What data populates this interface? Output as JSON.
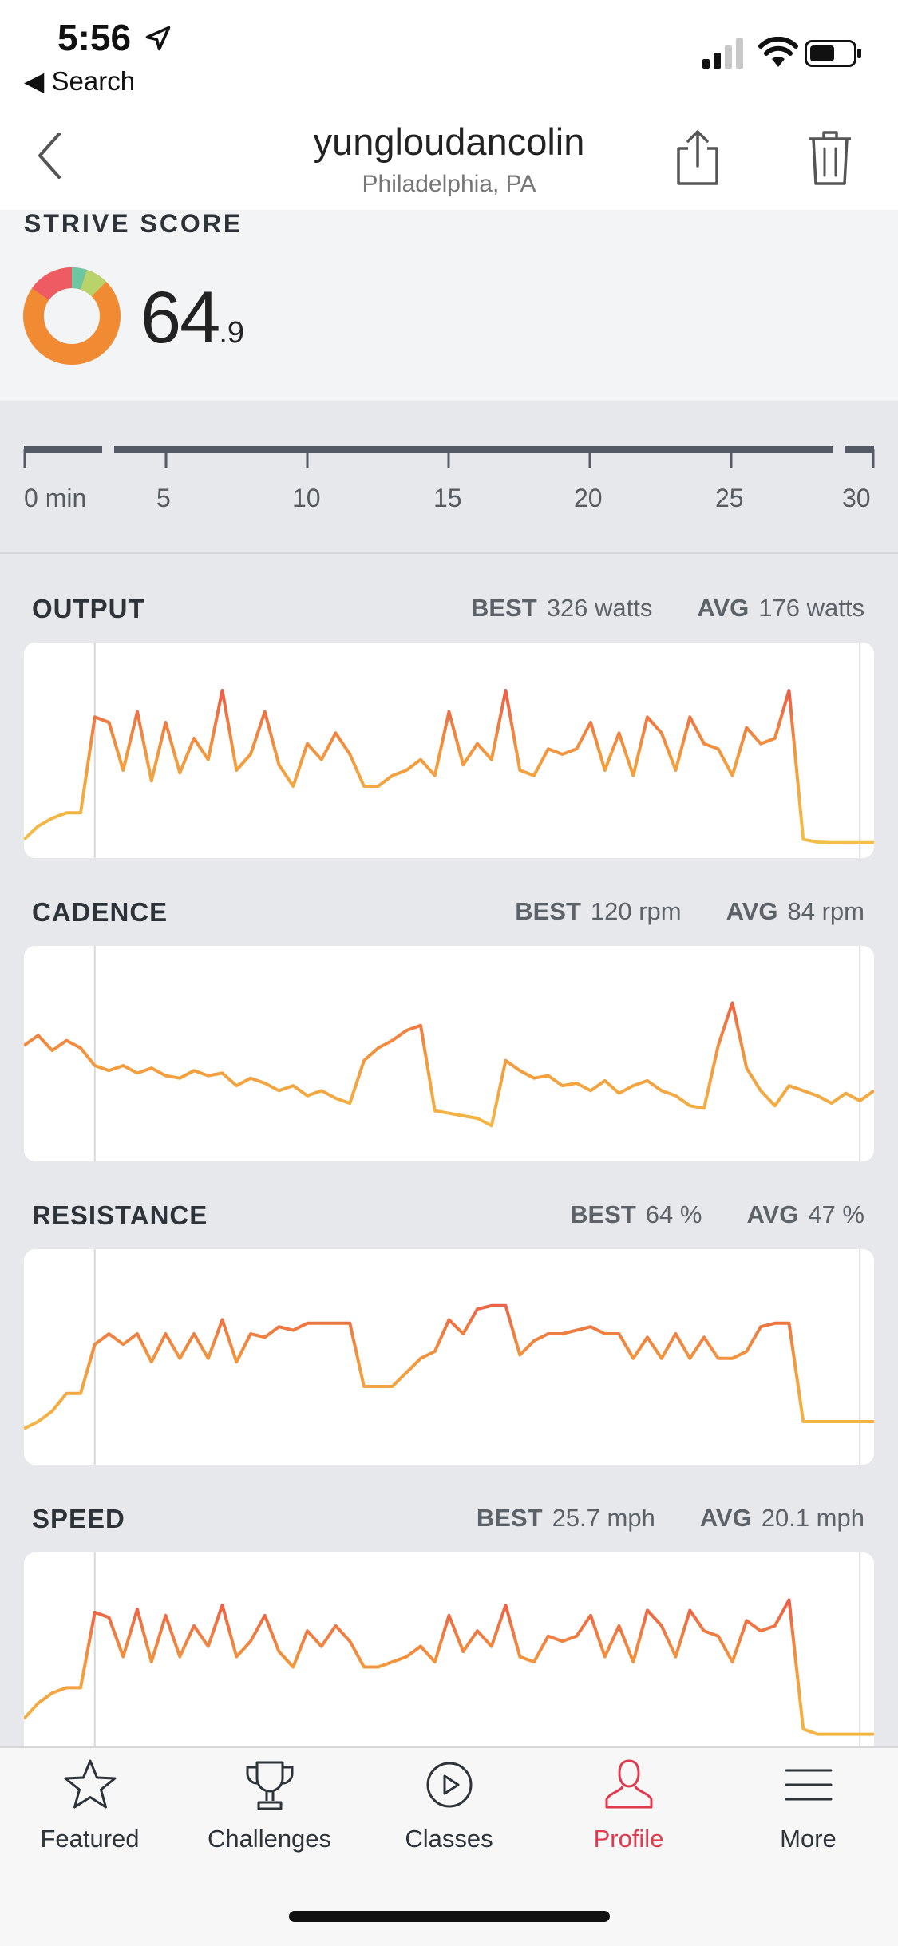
{
  "status_bar": {
    "time": "5:56",
    "back_label": "◀ Search"
  },
  "header": {
    "title": "yungloudancolin",
    "subtitle": "Philadelphia, PA"
  },
  "strive": {
    "label": "STRIVE SCORE",
    "value_main": "64",
    "value_decimal": ".9",
    "zone_colors": [
      "#ef5b63",
      "#6cc7a0",
      "#b7d36a",
      "#f08a33"
    ]
  },
  "timeline": {
    "ticks": [
      "0 min",
      "5",
      "10",
      "15",
      "20",
      "25",
      "30"
    ]
  },
  "metrics": [
    {
      "id": "output",
      "title": "OUTPUT",
      "best_label": "BEST",
      "best_value": "326 watts",
      "avg_label": "AVG",
      "avg_value": "176 watts",
      "chart_data": {
        "type": "line",
        "x": [
          0,
          0.5,
          1,
          1.5,
          2,
          2.5,
          3,
          3.5,
          4,
          4.5,
          5,
          5.5,
          6,
          6.5,
          7,
          7.5,
          8,
          8.5,
          9,
          9.5,
          10,
          10.5,
          11,
          11.5,
          12,
          12.5,
          13,
          13.5,
          14,
          14.5,
          15,
          15.5,
          16,
          16.5,
          17,
          17.5,
          18,
          18.5,
          19,
          19.5,
          20,
          20.5,
          21,
          21.5,
          22,
          22.5,
          23,
          23.5,
          24,
          24.5,
          25,
          25.5,
          26,
          26.5,
          27,
          27.5,
          28,
          28.5,
          29,
          29.5,
          30
        ],
        "y": [
          20,
          45,
          60,
          70,
          70,
          250,
          240,
          150,
          260,
          130,
          240,
          145,
          210,
          170,
          300,
          150,
          180,
          260,
          160,
          120,
          200,
          170,
          220,
          180,
          120,
          120,
          140,
          150,
          170,
          140,
          260,
          160,
          200,
          170,
          300,
          150,
          140,
          190,
          180,
          190,
          240,
          150,
          220,
          140,
          250,
          220,
          150,
          250,
          200,
          190,
          140,
          230,
          200,
          210,
          300,
          20,
          15,
          14,
          14,
          14,
          14
        ],
        "xlim": [
          0,
          30
        ],
        "ylim": [
          0,
          330
        ]
      }
    },
    {
      "id": "cadence",
      "title": "CADENCE",
      "best_label": "BEST",
      "best_value": "120 rpm",
      "avg_label": "AVG",
      "avg_value": "84 rpm",
      "chart_data": {
        "type": "line",
        "x": [
          0,
          0.5,
          1,
          1.5,
          2,
          2.5,
          3,
          3.5,
          4,
          4.5,
          5,
          5.5,
          6,
          6.5,
          7,
          7.5,
          8,
          8.5,
          9,
          9.5,
          10,
          10.5,
          11,
          11.5,
          12,
          12.5,
          13,
          13.5,
          14,
          14.5,
          15,
          15.5,
          16,
          16.5,
          17,
          17.5,
          18,
          18.5,
          19,
          19.5,
          20,
          20.5,
          21,
          21.5,
          22,
          22.5,
          23,
          23.5,
          24,
          24.5,
          25,
          25.5,
          26,
          26.5,
          27,
          27.5,
          28,
          28.5,
          29,
          29.5,
          30
        ],
        "y": [
          98,
          102,
          96,
          100,
          97,
          90,
          88,
          90,
          87,
          89,
          86,
          85,
          88,
          86,
          87,
          82,
          85,
          83,
          80,
          82,
          78,
          80,
          77,
          75,
          92,
          97,
          100,
          104,
          106,
          72,
          71,
          70,
          69,
          66,
          92,
          88,
          85,
          86,
          82,
          83,
          80,
          84,
          79,
          82,
          84,
          80,
          78,
          74,
          73,
          98,
          115,
          89,
          80,
          74,
          82,
          80,
          78,
          75,
          79,
          76,
          80
        ],
        "xlim": [
          0,
          30
        ],
        "ylim": [
          55,
          125
        ]
      }
    },
    {
      "id": "resistance",
      "title": "RESISTANCE",
      "best_label": "BEST",
      "best_value": "64 %",
      "avg_label": "AVG",
      "avg_value": "47 %",
      "chart_data": {
        "type": "line",
        "x": [
          0,
          0.5,
          1,
          1.5,
          2,
          2.5,
          3,
          3.5,
          4,
          4.5,
          5,
          5.5,
          6,
          6.5,
          7,
          7.5,
          8,
          8.5,
          9,
          9.5,
          10,
          10.5,
          11,
          11.5,
          12,
          12.5,
          13,
          13.5,
          14,
          14.5,
          15,
          15.5,
          16,
          16.5,
          17,
          17.5,
          18,
          18.5,
          19,
          19.5,
          20,
          20.5,
          21,
          21.5,
          22,
          22.5,
          23,
          23.5,
          24,
          24.5,
          25,
          25.5,
          26,
          26.5,
          27,
          27.5,
          28,
          28.5,
          29,
          29.5,
          30
        ],
        "y": [
          28,
          30,
          33,
          38,
          38,
          52,
          55,
          52,
          55,
          47,
          55,
          48,
          55,
          48,
          59,
          47,
          55,
          54,
          57,
          56,
          58,
          58,
          58,
          58,
          40,
          40,
          40,
          44,
          48,
          50,
          59,
          55,
          62,
          63,
          63,
          49,
          53,
          55,
          55,
          56,
          57,
          55,
          55,
          48,
          54,
          48,
          55,
          48,
          54,
          48,
          48,
          50,
          57,
          58,
          58,
          30,
          30,
          30,
          30,
          30,
          30
        ],
        "xlim": [
          0,
          30
        ],
        "ylim": [
          20,
          70
        ]
      }
    },
    {
      "id": "speed",
      "title": "SPEED",
      "best_label": "BEST",
      "best_value": "25.7 mph",
      "avg_label": "AVG",
      "avg_value": "20.1 mph",
      "chart_data": {
        "type": "line",
        "x": [
          0,
          0.5,
          1,
          1.5,
          2,
          2.5,
          3,
          3.5,
          4,
          4.5,
          5,
          5.5,
          6,
          6.5,
          7,
          7.5,
          8,
          8.5,
          9,
          9.5,
          10,
          10.5,
          11,
          11.5,
          12,
          12.5,
          13,
          13.5,
          14,
          14.5,
          15,
          15.5,
          16,
          16.5,
          17,
          17.5,
          18,
          18.5,
          19,
          19.5,
          20,
          20.5,
          21,
          21.5,
          22,
          22.5,
          23,
          23.5,
          24,
          24.5,
          25,
          25.5,
          26,
          26.5,
          27,
          27.5,
          28,
          28.5,
          29,
          29.5,
          30
        ],
        "y": [
          14,
          15.5,
          16.5,
          17,
          17,
          24.3,
          23.8,
          20,
          24.6,
          19.5,
          24,
          20,
          23,
          21,
          25,
          20,
          21.5,
          24,
          20.5,
          19,
          22.5,
          21,
          23,
          21.5,
          19,
          19,
          19.5,
          20,
          21,
          19.5,
          24,
          20.5,
          22.5,
          21,
          25,
          20,
          19.5,
          22,
          21.5,
          22,
          24,
          20,
          23,
          19.5,
          24.5,
          23,
          20,
          24.5,
          22.5,
          22,
          19.5,
          23.5,
          22.5,
          23,
          25.5,
          13,
          12.5,
          12.5,
          12.5,
          12.5,
          12.5
        ],
        "xlim": [
          0,
          30
        ],
        "ylim": [
          10,
          27
        ]
      }
    }
  ],
  "tabs": [
    {
      "label": "Featured",
      "icon": "star-icon",
      "active": false
    },
    {
      "label": "Challenges",
      "icon": "trophy-icon",
      "active": false
    },
    {
      "label": "Classes",
      "icon": "play-icon",
      "active": false
    },
    {
      "label": "Profile",
      "icon": "person-icon",
      "active": true
    },
    {
      "label": "More",
      "icon": "menu-icon",
      "active": false
    }
  ],
  "colors": {
    "accent": "#e03a4e",
    "line_low": "#f3c64b",
    "line_mid": "#f29a3d",
    "line_high": "#e8504a"
  }
}
